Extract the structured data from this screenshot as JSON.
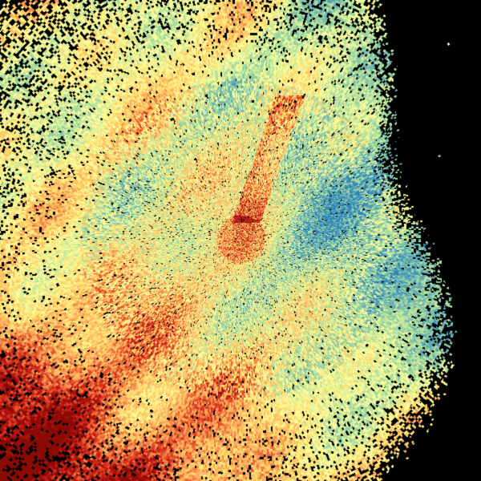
{
  "image": {
    "kind": "radar-sweep-field",
    "background": "#000000",
    "colormap": [
      "#2b83ba",
      "#5fa8b8",
      "#8fcfa4",
      "#c7e99a",
      "#ffffa0",
      "#fddb6a",
      "#fdae61",
      "#e8602f",
      "#c81b16",
      "#8a0a06"
    ]
  }
}
